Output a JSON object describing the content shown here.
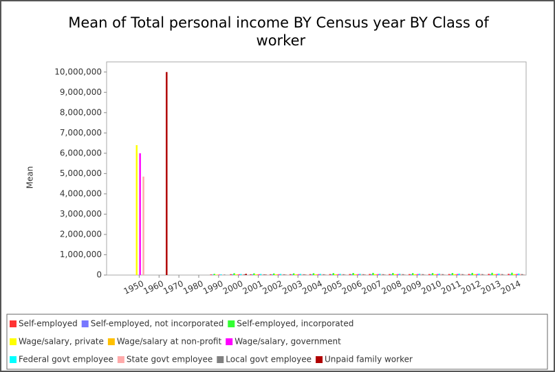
{
  "chart_data": {
    "type": "bar",
    "title": "Mean of Total personal income BY Census year BY Class of worker",
    "y_label": "Mean",
    "categories": [
      "1950",
      "1960",
      "1970",
      "1980",
      "1990",
      "2000",
      "2001",
      "2002",
      "2003",
      "2004",
      "2005",
      "2006",
      "2007",
      "2008",
      "2009",
      "2010",
      "2011",
      "2012",
      "2013",
      "2014"
    ],
    "series": [
      {
        "name": "Self-employed",
        "color": "#ff3333",
        "values": [
          null,
          null,
          null,
          null,
          30000,
          45000,
          40000,
          42000,
          45000,
          48000,
          50000,
          52000,
          55000,
          50000,
          48000,
          50000,
          52000,
          55000,
          58000,
          60000
        ]
      },
      {
        "name": "Self-employed, not incorporated",
        "color": "#7777ff",
        "values": [
          null,
          null,
          null,
          null,
          25000,
          35000,
          34000,
          33000,
          35000,
          36000,
          38000,
          40000,
          41000,
          39000,
          37000,
          38000,
          39000,
          40000,
          42000,
          43000
        ]
      },
      {
        "name": "Self-employed, incorporated",
        "color": "#33ff33",
        "values": [
          null,
          null,
          null,
          null,
          60000,
          90000,
          85000,
          80000,
          85000,
          90000,
          95000,
          100000,
          105000,
          100000,
          95000,
          98000,
          100000,
          105000,
          110000,
          115000
        ]
      },
      {
        "name": "Wage/salary, private",
        "color": "#ffff00",
        "values": [
          6400000,
          null,
          null,
          null,
          25000,
          38000,
          39000,
          39000,
          40000,
          41000,
          42000,
          43000,
          45000,
          44000,
          43000,
          44000,
          45000,
          46000,
          47000,
          48000
        ]
      },
      {
        "name": "Wage/salary at non-profit",
        "color": "#ffc000",
        "values": [
          null,
          null,
          null,
          null,
          22000,
          33000,
          34000,
          35000,
          36000,
          37000,
          38000,
          39000,
          40000,
          40000,
          40000,
          41000,
          42000,
          43000,
          44000,
          45000
        ]
      },
      {
        "name": "Wage/salary, government",
        "color": "#ff00ff",
        "values": [
          6000000,
          null,
          null,
          null,
          28000,
          40000,
          41000,
          42000,
          43000,
          44000,
          45000,
          46000,
          47000,
          48000,
          49000,
          50000,
          50000,
          51000,
          52000,
          53000
        ]
      },
      {
        "name": "Federal govt employee",
        "color": "#00ffff",
        "values": [
          null,
          null,
          null,
          null,
          35000,
          50000,
          52000,
          54000,
          56000,
          58000,
          60000,
          62000,
          64000,
          66000,
          68000,
          70000,
          71000,
          72000,
          73000,
          74000
        ]
      },
      {
        "name": "State govt employee",
        "color": "#ffaaaa",
        "values": [
          4850000,
          null,
          null,
          null,
          27000,
          39000,
          40000,
          41000,
          42000,
          43000,
          44000,
          45000,
          46000,
          47000,
          48000,
          49000,
          49000,
          50000,
          51000,
          52000
        ]
      },
      {
        "name": "Local govt employee",
        "color": "#808080",
        "values": [
          null,
          null,
          null,
          null,
          26000,
          37000,
          38000,
          39000,
          40000,
          41000,
          42000,
          43000,
          44000,
          45000,
          46000,
          46000,
          47000,
          48000,
          48000,
          49000
        ]
      },
      {
        "name": "Unpaid family worker",
        "color": "#b00000",
        "values": [
          null,
          10000000,
          null,
          null,
          null,
          60000,
          20000,
          15000,
          18000,
          12000,
          10000,
          15000,
          12000,
          10000,
          9000,
          8000,
          10000,
          9000,
          8000,
          10000
        ]
      }
    ],
    "ylim": [
      0,
      10500000
    ],
    "yticks": [
      0,
      {
        "value": 1000000,
        "label": "1,000,000"
      },
      {
        "value": 2000000,
        "label": "2,000,000"
      },
      {
        "value": 3000000,
        "label": "3,000,000"
      },
      {
        "value": 4000000,
        "label": "4,000,000"
      },
      {
        "value": 5000000,
        "label": "5,000,000"
      },
      {
        "value": 6000000,
        "label": "6,000,000"
      },
      {
        "value": 7000000,
        "label": "7,000,000"
      },
      {
        "value": 8000000,
        "label": "8,000,000"
      },
      {
        "value": 9000000,
        "label": "9,000,000"
      },
      {
        "value": 10000000,
        "label": "10,000,000"
      }
    ]
  }
}
